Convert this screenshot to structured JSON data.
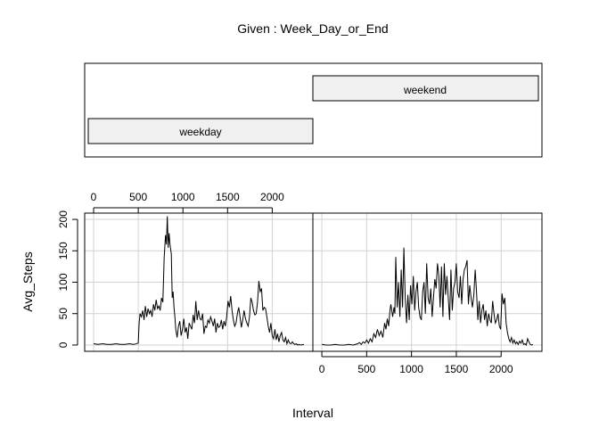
{
  "chart_data": {
    "type": "line",
    "title": "Given : Week_Day_or_End",
    "xlabel": "Interval",
    "ylabel": "Avg_Steps",
    "given_levels": [
      "weekday",
      "weekend"
    ],
    "xlim": [
      -100,
      2455
    ],
    "ylim": [
      -10,
      210
    ],
    "x_ticks": [
      0,
      500,
      1000,
      1500,
      2000
    ],
    "y_ticks": [
      0,
      50,
      100,
      150,
      200
    ],
    "grid": true,
    "panels": [
      {
        "name": "weekday",
        "points": [
          [
            0,
            2
          ],
          [
            50,
            1
          ],
          [
            100,
            2
          ],
          [
            150,
            1
          ],
          [
            200,
            1
          ],
          [
            250,
            2
          ],
          [
            300,
            1
          ],
          [
            350,
            1
          ],
          [
            400,
            2
          ],
          [
            450,
            1
          ],
          [
            500,
            3
          ],
          [
            510,
            35
          ],
          [
            520,
            50
          ],
          [
            535,
            45
          ],
          [
            550,
            55
          ],
          [
            565,
            40
          ],
          [
            580,
            62
          ],
          [
            595,
            45
          ],
          [
            610,
            58
          ],
          [
            625,
            50
          ],
          [
            640,
            55
          ],
          [
            655,
            45
          ],
          [
            670,
            65
          ],
          [
            685,
            55
          ],
          [
            700,
            72
          ],
          [
            715,
            58
          ],
          [
            730,
            62
          ],
          [
            745,
            55
          ],
          [
            760,
            75
          ],
          [
            775,
            68
          ],
          [
            790,
            140
          ],
          [
            805,
            175
          ],
          [
            815,
            160
          ],
          [
            825,
            205
          ],
          [
            835,
            155
          ],
          [
            845,
            178
          ],
          [
            855,
            160
          ],
          [
            870,
            145
          ],
          [
            880,
            75
          ],
          [
            890,
            85
          ],
          [
            900,
            60
          ],
          [
            910,
            45
          ],
          [
            920,
            25
          ],
          [
            935,
            12
          ],
          [
            950,
            30
          ],
          [
            965,
            38
          ],
          [
            980,
            15
          ],
          [
            995,
            25
          ],
          [
            1010,
            42
          ],
          [
            1025,
            20
          ],
          [
            1040,
            28
          ],
          [
            1055,
            10
          ],
          [
            1070,
            35
          ],
          [
            1085,
            30
          ],
          [
            1100,
            25
          ],
          [
            1115,
            48
          ],
          [
            1130,
            35
          ],
          [
            1145,
            70
          ],
          [
            1160,
            40
          ],
          [
            1175,
            55
          ],
          [
            1190,
            42
          ],
          [
            1205,
            40
          ],
          [
            1220,
            50
          ],
          [
            1235,
            18
          ],
          [
            1250,
            30
          ],
          [
            1265,
            28
          ],
          [
            1280,
            40
          ],
          [
            1295,
            35
          ],
          [
            1310,
            45
          ],
          [
            1325,
            38
          ],
          [
            1340,
            30
          ],
          [
            1355,
            42
          ],
          [
            1370,
            20
          ],
          [
            1385,
            35
          ],
          [
            1400,
            28
          ],
          [
            1415,
            30
          ],
          [
            1430,
            40
          ],
          [
            1445,
            25
          ],
          [
            1460,
            38
          ],
          [
            1475,
            30
          ],
          [
            1490,
            45
          ],
          [
            1505,
            70
          ],
          [
            1520,
            60
          ],
          [
            1535,
            78
          ],
          [
            1550,
            55
          ],
          [
            1565,
            40
          ],
          [
            1580,
            30
          ],
          [
            1595,
            35
          ],
          [
            1610,
            50
          ],
          [
            1625,
            60
          ],
          [
            1640,
            45
          ],
          [
            1655,
            28
          ],
          [
            1670,
            40
          ],
          [
            1685,
            55
          ],
          [
            1700,
            42
          ],
          [
            1715,
            35
          ],
          [
            1730,
            30
          ],
          [
            1745,
            45
          ],
          [
            1760,
            75
          ],
          [
            1775,
            68
          ],
          [
            1790,
            55
          ],
          [
            1805,
            48
          ],
          [
            1820,
            50
          ],
          [
            1835,
            68
          ],
          [
            1850,
            102
          ],
          [
            1865,
            85
          ],
          [
            1880,
            90
          ],
          [
            1895,
            55
          ],
          [
            1910,
            60
          ],
          [
            1925,
            58
          ],
          [
            1940,
            45
          ],
          [
            1955,
            30
          ],
          [
            1970,
            20
          ],
          [
            1985,
            35
          ],
          [
            2000,
            15
          ],
          [
            2015,
            10
          ],
          [
            2030,
            25
          ],
          [
            2045,
            8
          ],
          [
            2060,
            18
          ],
          [
            2075,
            5
          ],
          [
            2090,
            15
          ],
          [
            2105,
            20
          ],
          [
            2120,
            8
          ],
          [
            2135,
            5
          ],
          [
            2150,
            12
          ],
          [
            2165,
            2
          ],
          [
            2180,
            8
          ],
          [
            2195,
            3
          ],
          [
            2210,
            2
          ],
          [
            2225,
            5
          ],
          [
            2240,
            2
          ],
          [
            2255,
            1
          ],
          [
            2270,
            2
          ],
          [
            2285,
            0
          ],
          [
            2300,
            1
          ],
          [
            2320,
            0
          ],
          [
            2355,
            1
          ]
        ]
      },
      {
        "name": "weekend",
        "points": [
          [
            0,
            1
          ],
          [
            50,
            0
          ],
          [
            100,
            0
          ],
          [
            150,
            1
          ],
          [
            200,
            0
          ],
          [
            250,
            0
          ],
          [
            300,
            1
          ],
          [
            350,
            0
          ],
          [
            400,
            2
          ],
          [
            420,
            4
          ],
          [
            440,
            1
          ],
          [
            460,
            5
          ],
          [
            480,
            3
          ],
          [
            500,
            8
          ],
          [
            520,
            3
          ],
          [
            540,
            10
          ],
          [
            560,
            5
          ],
          [
            580,
            18
          ],
          [
            600,
            12
          ],
          [
            620,
            25
          ],
          [
            640,
            15
          ],
          [
            660,
            22
          ],
          [
            680,
            12
          ],
          [
            700,
            35
          ],
          [
            715,
            25
          ],
          [
            730,
            42
          ],
          [
            745,
            30
          ],
          [
            760,
            55
          ],
          [
            770,
            65
          ],
          [
            780,
            55
          ],
          [
            790,
            45
          ],
          [
            805,
            60
          ],
          [
            815,
            50
          ],
          [
            825,
            140
          ],
          [
            840,
            60
          ],
          [
            855,
            100
          ],
          [
            870,
            45
          ],
          [
            885,
            120
          ],
          [
            900,
            60
          ],
          [
            915,
            155
          ],
          [
            930,
            75
          ],
          [
            945,
            35
          ],
          [
            960,
            80
          ],
          [
            975,
            40
          ],
          [
            990,
            95
          ],
          [
            1005,
            65
          ],
          [
            1020,
            110
          ],
          [
            1035,
            55
          ],
          [
            1050,
            85
          ],
          [
            1065,
            100
          ],
          [
            1080,
            60
          ],
          [
            1095,
            45
          ],
          [
            1110,
            40
          ],
          [
            1125,
            85
          ],
          [
            1140,
            100
          ],
          [
            1155,
            50
          ],
          [
            1170,
            130
          ],
          [
            1185,
            75
          ],
          [
            1200,
            65
          ],
          [
            1215,
            90
          ],
          [
            1230,
            45
          ],
          [
            1245,
            75
          ],
          [
            1260,
            105
          ],
          [
            1275,
            90
          ],
          [
            1290,
            130
          ],
          [
            1305,
            110
          ],
          [
            1320,
            60
          ],
          [
            1335,
            125
          ],
          [
            1350,
            45
          ],
          [
            1365,
            130
          ],
          [
            1380,
            80
          ],
          [
            1395,
            110
          ],
          [
            1410,
            75
          ],
          [
            1425,
            40
          ],
          [
            1440,
            120
          ],
          [
            1455,
            55
          ],
          [
            1470,
            90
          ],
          [
            1485,
            100
          ],
          [
            1500,
            130
          ],
          [
            1515,
            85
          ],
          [
            1530,
            75
          ],
          [
            1545,
            110
          ],
          [
            1560,
            65
          ],
          [
            1575,
            105
          ],
          [
            1590,
            120
          ],
          [
            1605,
            125
          ],
          [
            1620,
            135
          ],
          [
            1635,
            65
          ],
          [
            1650,
            95
          ],
          [
            1665,
            75
          ],
          [
            1680,
            60
          ],
          [
            1695,
            80
          ],
          [
            1710,
            120
          ],
          [
            1725,
            85
          ],
          [
            1740,
            40
          ],
          [
            1755,
            70
          ],
          [
            1770,
            35
          ],
          [
            1785,
            55
          ],
          [
            1800,
            65
          ],
          [
            1815,
            40
          ],
          [
            1830,
            55
          ],
          [
            1845,
            30
          ],
          [
            1860,
            50
          ],
          [
            1875,
            40
          ],
          [
            1890,
            35
          ],
          [
            1905,
            70
          ],
          [
            1920,
            50
          ],
          [
            1935,
            35
          ],
          [
            1950,
            40
          ],
          [
            1965,
            50
          ],
          [
            1980,
            30
          ],
          [
            1995,
            25
          ],
          [
            2010,
            82
          ],
          [
            2025,
            65
          ],
          [
            2040,
            75
          ],
          [
            2055,
            35
          ],
          [
            2070,
            20
          ],
          [
            2085,
            10
          ],
          [
            2100,
            5
          ],
          [
            2115,
            12
          ],
          [
            2130,
            3
          ],
          [
            2145,
            8
          ],
          [
            2160,
            2
          ],
          [
            2175,
            5
          ],
          [
            2190,
            1
          ],
          [
            2205,
            6
          ],
          [
            2220,
            3
          ],
          [
            2235,
            8
          ],
          [
            2250,
            1
          ],
          [
            2265,
            2
          ],
          [
            2280,
            0
          ],
          [
            2295,
            10
          ],
          [
            2310,
            5
          ],
          [
            2325,
            1
          ],
          [
            2340,
            0
          ],
          [
            2355,
            1
          ]
        ]
      }
    ]
  }
}
